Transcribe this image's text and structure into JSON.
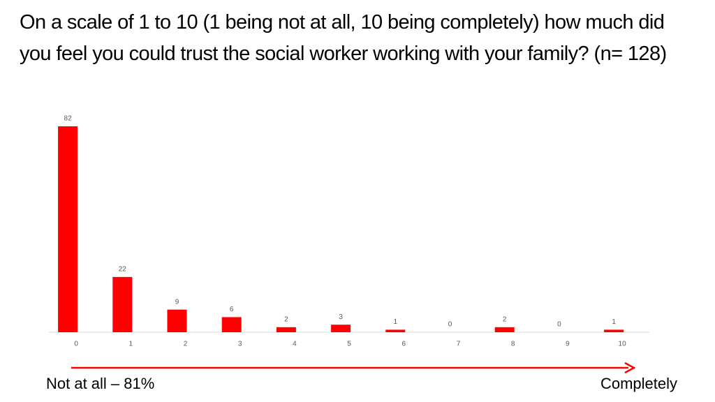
{
  "chart_data": {
    "type": "bar",
    "title": "On a scale of 1 to 10 (1 being not at all, 10 being completely) how much did you feel you could trust the social worker working with your family? (n= 128)",
    "categories": [
      "0",
      "1",
      "2",
      "3",
      "4",
      "5",
      "6",
      "7",
      "8",
      "9",
      "10"
    ],
    "values": [
      82,
      22,
      9,
      6,
      2,
      3,
      1,
      0,
      2,
      0,
      1
    ],
    "color": "#ff0000",
    "annotations": [
      "Not at all – 81%",
      "Completely"
    ]
  }
}
